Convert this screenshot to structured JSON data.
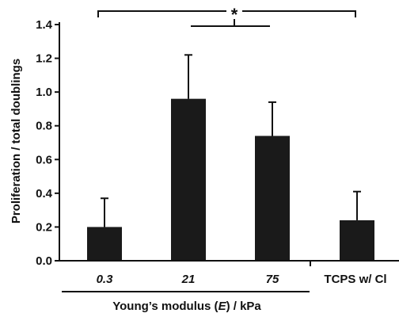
{
  "chart_data": {
    "type": "bar",
    "categories": [
      "0.3",
      "21",
      "75",
      "TCPS w/ Cl"
    ],
    "values": [
      0.2,
      0.96,
      0.74,
      0.24
    ],
    "errors": [
      0.17,
      0.26,
      0.2,
      0.17
    ],
    "ylabel": "Proliferation / total doublings",
    "xlabel_prefix": "Young’s modulus (",
    "xlabel_symbol": "E",
    "xlabel_suffix": ") / kPa",
    "ylim": [
      0,
      1.4
    ],
    "yticks": [
      "0.0",
      "0.2",
      "0.4",
      "0.6",
      "0.8",
      "1.0",
      "1.2",
      "1.4"
    ],
    "significance_marker": "*",
    "bar_color": "#1a1a1a",
    "grid": false
  }
}
